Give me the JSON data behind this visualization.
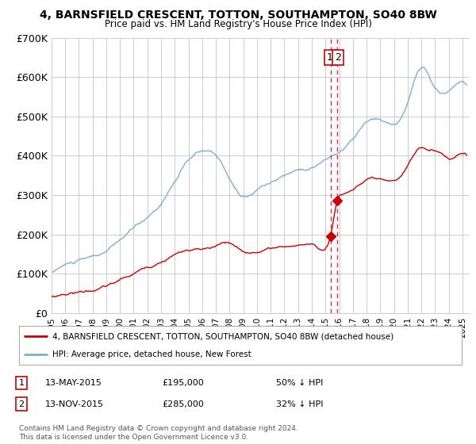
{
  "title": "4, BARNSFIELD CRESCENT, TOTTON, SOUTHAMPTON, SO40 8BW",
  "subtitle": "Price paid vs. HM Land Registry's House Price Index (HPI)",
  "ylim": [
    0,
    700000
  ],
  "yticks": [
    0,
    100000,
    200000,
    300000,
    400000,
    500000,
    600000,
    700000
  ],
  "ytick_labels": [
    "£0",
    "£100K",
    "£200K",
    "£300K",
    "£400K",
    "£500K",
    "£600K",
    "£700K"
  ],
  "red_line_color": "#cc0000",
  "blue_line_color": "#7bafd4",
  "dashed_line_color": "#dd3333",
  "shade_color": "#ddeeff",
  "marker_color": "#cc0000",
  "grid_color": "#cccccc",
  "bg_color": "#ffffff",
  "transaction1_date": 2015.37,
  "transaction1_price": 195000,
  "transaction2_date": 2015.87,
  "transaction2_price": 285000,
  "legend_red": "4, BARNSFIELD CRESCENT, TOTTON, SOUTHAMPTON, SO40 8BW (detached house)",
  "legend_blue": "HPI: Average price, detached house, New Forest",
  "note1_num": "1",
  "note1_date": "13-MAY-2015",
  "note1_price": "£195,000",
  "note1_hpi": "50% ↓ HPI",
  "note2_num": "2",
  "note2_date": "13-NOV-2015",
  "note2_price": "£285,000",
  "note2_hpi": "32% ↓ HPI",
  "copyright": "Contains HM Land Registry data © Crown copyright and database right 2024.\nThis data is licensed under the Open Government Licence v3.0.",
  "xmin": 1995.0,
  "xmax": 2025.5
}
